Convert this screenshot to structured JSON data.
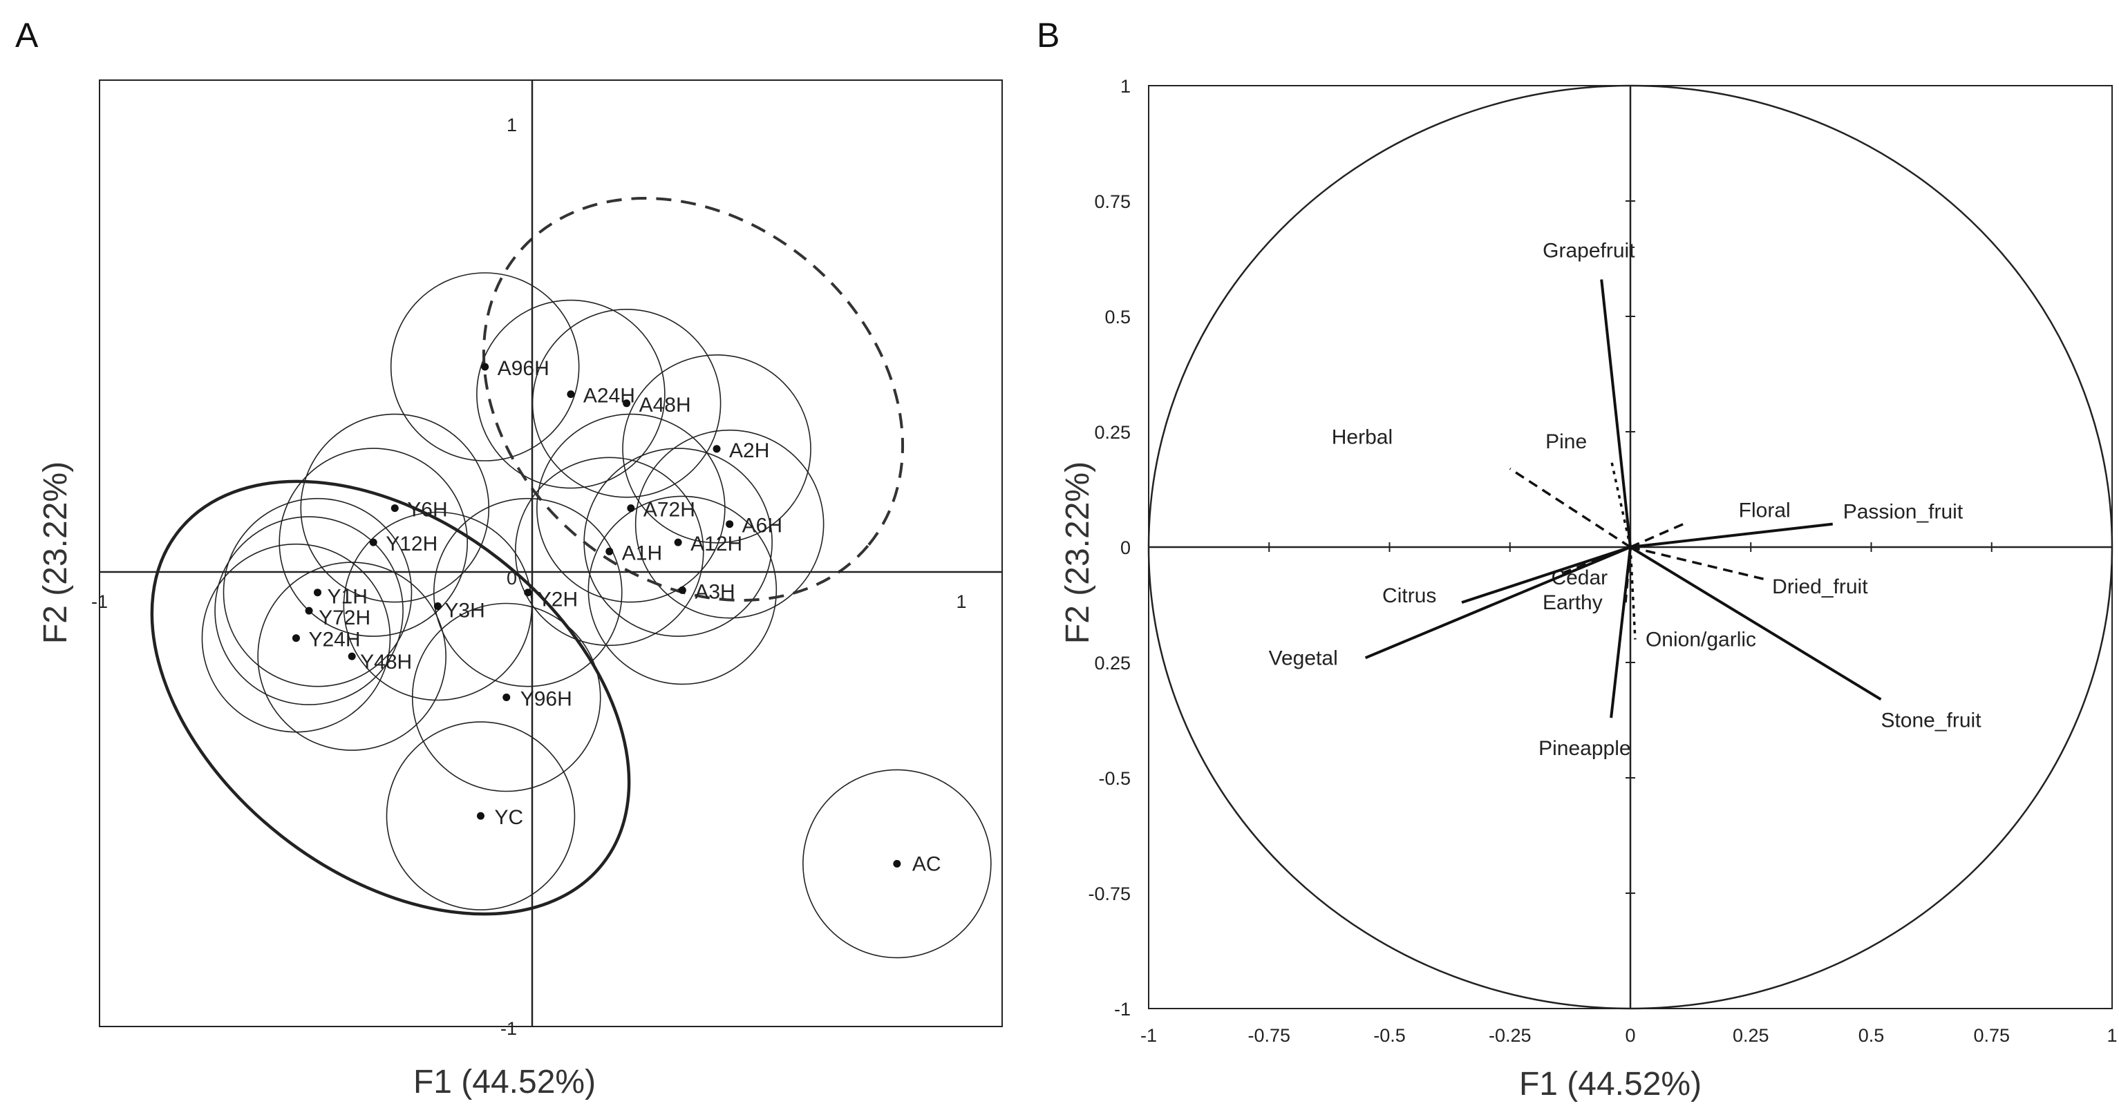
{
  "chart_data": [
    {
      "panel": "A",
      "type": "scatter",
      "xlabel": "F1 (44.52%)",
      "ylabel": "F2 (23.22%)",
      "xlim": [
        -1,
        1.1
      ],
      "ylim": [
        -1,
        1
      ],
      "x_ticks": [
        "-1",
        "1"
      ],
      "y_ticks": [
        "1",
        "0",
        "-1"
      ],
      "points": [
        {
          "label": "A96H",
          "x": -0.11,
          "y": 0.45
        },
        {
          "label": "A24H",
          "x": 0.09,
          "y": 0.39
        },
        {
          "label": "A48H",
          "x": 0.22,
          "y": 0.37
        },
        {
          "label": "A2H",
          "x": 0.43,
          "y": 0.27
        },
        {
          "label": "A72H",
          "x": 0.23,
          "y": 0.14
        },
        {
          "label": "A6H",
          "x": 0.46,
          "y": 0.105
        },
        {
          "label": "A12H",
          "x": 0.34,
          "y": 0.065
        },
        {
          "label": "A1H",
          "x": 0.18,
          "y": 0.045
        },
        {
          "label": "A3H",
          "x": 0.35,
          "y": -0.04
        },
        {
          "label": "Y6H",
          "x": -0.32,
          "y": 0.14
        },
        {
          "label": "Y12H",
          "x": -0.37,
          "y": 0.065
        },
        {
          "label": "Y1H",
          "x": -0.5,
          "y": -0.045
        },
        {
          "label": "Y72H",
          "x": -0.52,
          "y": -0.085
        },
        {
          "label": "Y24H",
          "x": -0.55,
          "y": -0.145
        },
        {
          "label": "Y48H",
          "x": -0.42,
          "y": -0.185
        },
        {
          "label": "Y3H",
          "x": -0.22,
          "y": -0.075
        },
        {
          "label": "Y2H",
          "x": -0.01,
          "y": -0.045
        },
        {
          "label": "Y96H",
          "x": -0.06,
          "y": -0.275
        },
        {
          "label": "YC",
          "x": -0.12,
          "y": -0.535
        },
        {
          "label": "AC",
          "x": 0.85,
          "y": -0.64
        }
      ],
      "confidence_circles": [
        "A96H",
        "A24H",
        "A48H",
        "A2H",
        "A72H",
        "A6H",
        "A12H",
        "A1H",
        "A3H",
        "Y6H",
        "Y12H",
        "Y1H",
        "Y72H",
        "Y24H",
        "Y48H",
        "Y3H",
        "Y2H",
        "Y96H",
        "YC",
        "AC"
      ],
      "groups": [
        {
          "name": "A",
          "style": "dashed-ellipse"
        },
        {
          "name": "Y",
          "style": "solid-ellipse"
        }
      ]
    },
    {
      "panel": "B",
      "type": "scatter",
      "subtype": "correlation-circle",
      "xlabel": "F1 (44.52%)",
      "ylabel": "F2 (23.22%)",
      "xlim": [
        -1,
        1
      ],
      "ylim": [
        -1,
        1
      ],
      "x_ticks": [
        "-1",
        "-0.75",
        "-0.5",
        "-0.25",
        "0",
        "0.25",
        "0.5",
        "0.75",
        "1"
      ],
      "y_ticks": [
        "1",
        "0.75",
        "0.5",
        "0.25",
        "0",
        "0.25",
        "-0.5",
        "-0.75",
        "-1"
      ],
      "vectors": [
        {
          "label": "Grapefruit",
          "x": -0.06,
          "y": 0.58,
          "style": "solid"
        },
        {
          "label": "Pine",
          "x": -0.04,
          "y": 0.19,
          "style": "dotted"
        },
        {
          "label": "Herbal",
          "x": -0.25,
          "y": 0.17,
          "style": "dashed"
        },
        {
          "label": "Floral",
          "x": 0.11,
          "y": 0.05,
          "style": "dashed"
        },
        {
          "label": "Passion_fruit",
          "x": 0.42,
          "y": 0.05,
          "style": "solid"
        },
        {
          "label": "Dried_fruit",
          "x": 0.28,
          "y": -0.07,
          "style": "dashed"
        },
        {
          "label": "Onion/garlic",
          "x": 0.01,
          "y": -0.2,
          "style": "dotted"
        },
        {
          "label": "Stone_fruit",
          "x": 0.52,
          "y": -0.33,
          "style": "solid"
        },
        {
          "label": "Pineapple",
          "x": -0.04,
          "y": -0.37,
          "style": "solid"
        },
        {
          "label": "Earthy",
          "x": -0.01,
          "y": -0.12,
          "style": "dashed"
        },
        {
          "label": "Cedar",
          "x": -0.15,
          "y": -0.06,
          "style": "dashed"
        },
        {
          "label": "Citrus",
          "x": -0.35,
          "y": -0.12,
          "style": "solid"
        },
        {
          "label": "Vegetal",
          "x": -0.55,
          "y": -0.24,
          "style": "solid"
        }
      ]
    }
  ],
  "panel_letters": [
    "A",
    "B"
  ]
}
